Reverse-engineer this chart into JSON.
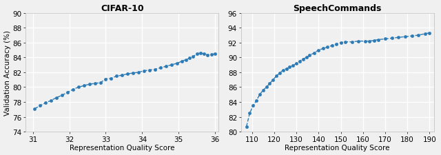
{
  "cifar10": {
    "title": "CIFAR-10",
    "xlabel": "Representation Quality Score",
    "ylabel": "Validation Accuracy (%)",
    "xlim": [
      30.8,
      36.1
    ],
    "ylim": [
      74,
      90
    ],
    "xticks": [
      31,
      32,
      33,
      34,
      35,
      36
    ],
    "yticks": [
      74,
      76,
      78,
      80,
      82,
      84,
      86,
      88,
      90
    ],
    "x": [
      31.05,
      31.2,
      31.35,
      31.5,
      31.65,
      31.8,
      31.95,
      32.1,
      32.25,
      32.4,
      32.55,
      32.7,
      32.85,
      33.0,
      33.15,
      33.3,
      33.45,
      33.6,
      33.75,
      33.9,
      34.05,
      34.2,
      34.35,
      34.5,
      34.65,
      34.8,
      34.95,
      35.1,
      35.2,
      35.3,
      35.4,
      35.5,
      35.6,
      35.7,
      35.8,
      35.9,
      36.0
    ],
    "y": [
      77.1,
      77.5,
      77.9,
      78.2,
      78.6,
      78.9,
      79.3,
      79.7,
      80.0,
      80.2,
      80.4,
      80.5,
      80.6,
      81.1,
      81.2,
      81.5,
      81.6,
      81.8,
      81.9,
      82.0,
      82.2,
      82.3,
      82.4,
      82.6,
      82.8,
      83.0,
      83.2,
      83.5,
      83.7,
      83.9,
      84.1,
      84.5,
      84.6,
      84.5,
      84.3,
      84.4,
      84.5
    ],
    "line_color": "#2c7bb6",
    "marker": "o",
    "markersize": 3.2,
    "linewidth": 1.0,
    "linestyle": "--"
  },
  "speech": {
    "title": "SpeechCommands",
    "xlabel": "Representation Quality Score",
    "ylabel": "",
    "xlim": [
      105,
      192
    ],
    "ylim": [
      80,
      96
    ],
    "xticks": [
      110,
      120,
      130,
      140,
      150,
      160,
      170,
      180,
      190
    ],
    "yticks": [
      80,
      82,
      84,
      86,
      88,
      90,
      92,
      94,
      96
    ],
    "x": [
      107.5,
      109.0,
      110.5,
      112.0,
      113.5,
      115.0,
      116.5,
      118.0,
      119.5,
      121.0,
      122.5,
      124.0,
      125.5,
      127.0,
      128.5,
      130.0,
      131.5,
      133.0,
      134.5,
      136.0,
      138.0,
      140.0,
      142.0,
      144.0,
      146.0,
      148.0,
      150.0,
      152.0,
      155.0,
      158.0,
      161.0,
      163.0,
      165.0,
      167.0,
      170.0,
      173.0,
      176.0,
      179.0,
      182.0,
      185.0,
      188.0,
      190.0
    ],
    "y": [
      80.7,
      82.5,
      83.5,
      84.2,
      85.0,
      85.6,
      86.0,
      86.5,
      87.0,
      87.5,
      87.9,
      88.3,
      88.5,
      88.7,
      88.9,
      89.2,
      89.5,
      89.8,
      90.0,
      90.3,
      90.6,
      91.0,
      91.2,
      91.4,
      91.6,
      91.8,
      92.0,
      92.1,
      92.1,
      92.2,
      92.2,
      92.2,
      92.3,
      92.4,
      92.5,
      92.6,
      92.7,
      92.8,
      92.9,
      93.0,
      93.2,
      93.3
    ],
    "line_color": "#2c7bb6",
    "marker": "o",
    "markersize": 3.2,
    "linewidth": 1.0,
    "linestyle": "--"
  },
  "fig_facecolor": "#f0f0f0",
  "ax_facecolor": "#f0f0f0",
  "grid_color": "#ffffff",
  "grid_linewidth": 1.0,
  "title_fontsize": 9,
  "label_fontsize": 7.5,
  "tick_fontsize": 7.5,
  "spine_color": "#bbbbbb"
}
